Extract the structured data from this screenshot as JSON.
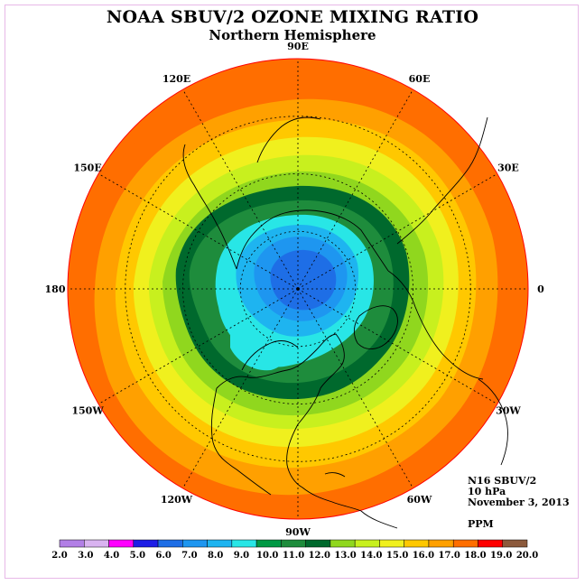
{
  "title": "NOAA SBUV/2 OZONE MIXING RATIO",
  "subtitle": "Northern Hemisphere",
  "longitude_labels": [
    {
      "text": "90E",
      "lon": 90
    },
    {
      "text": "60E",
      "lon": 60
    },
    {
      "text": "30E",
      "lon": 30
    },
    {
      "text": "0",
      "lon": 0
    },
    {
      "text": "30W",
      "lon": -30
    },
    {
      "text": "60W",
      "lon": -60
    },
    {
      "text": "90W",
      "lon": -90
    },
    {
      "text": "120W",
      "lon": -120
    },
    {
      "text": "150W",
      "lon": -150
    },
    {
      "text": "180",
      "lon": 180
    },
    {
      "text": "150E",
      "lon": 150
    },
    {
      "text": "120E",
      "lon": 120
    }
  ],
  "info": {
    "instrument": "N16 SBUV/2",
    "level": "10 hPa",
    "date": "November 3, 2013"
  },
  "units": "PPM",
  "colorbar": {
    "tick_labels": [
      "2.0",
      "3.0",
      "4.0",
      "5.0",
      "6.0",
      "7.0",
      "8.0",
      "9.0",
      "10.0",
      "11.0",
      "12.0",
      "13.0",
      "14.0",
      "15.0",
      "16.0",
      "17.0",
      "18.0",
      "19.0",
      "20.0"
    ],
    "colors": [
      "#b27fe6",
      "#d9b3f0",
      "#ff00ff",
      "#1e1ee6",
      "#1e6ee6",
      "#1e96f0",
      "#1eb4f0",
      "#28e6e6",
      "#009944",
      "#1e8c3c",
      "#00692d",
      "#90d71e",
      "#c8f01e",
      "#f0f01e",
      "#ffc800",
      "#ffa000",
      "#ff6e00",
      "#ff0000",
      "#8c5a3c"
    ]
  },
  "colors": {
    "frame": "#e7b8e7",
    "graticule": "#000000",
    "coastline": "#000000"
  }
}
